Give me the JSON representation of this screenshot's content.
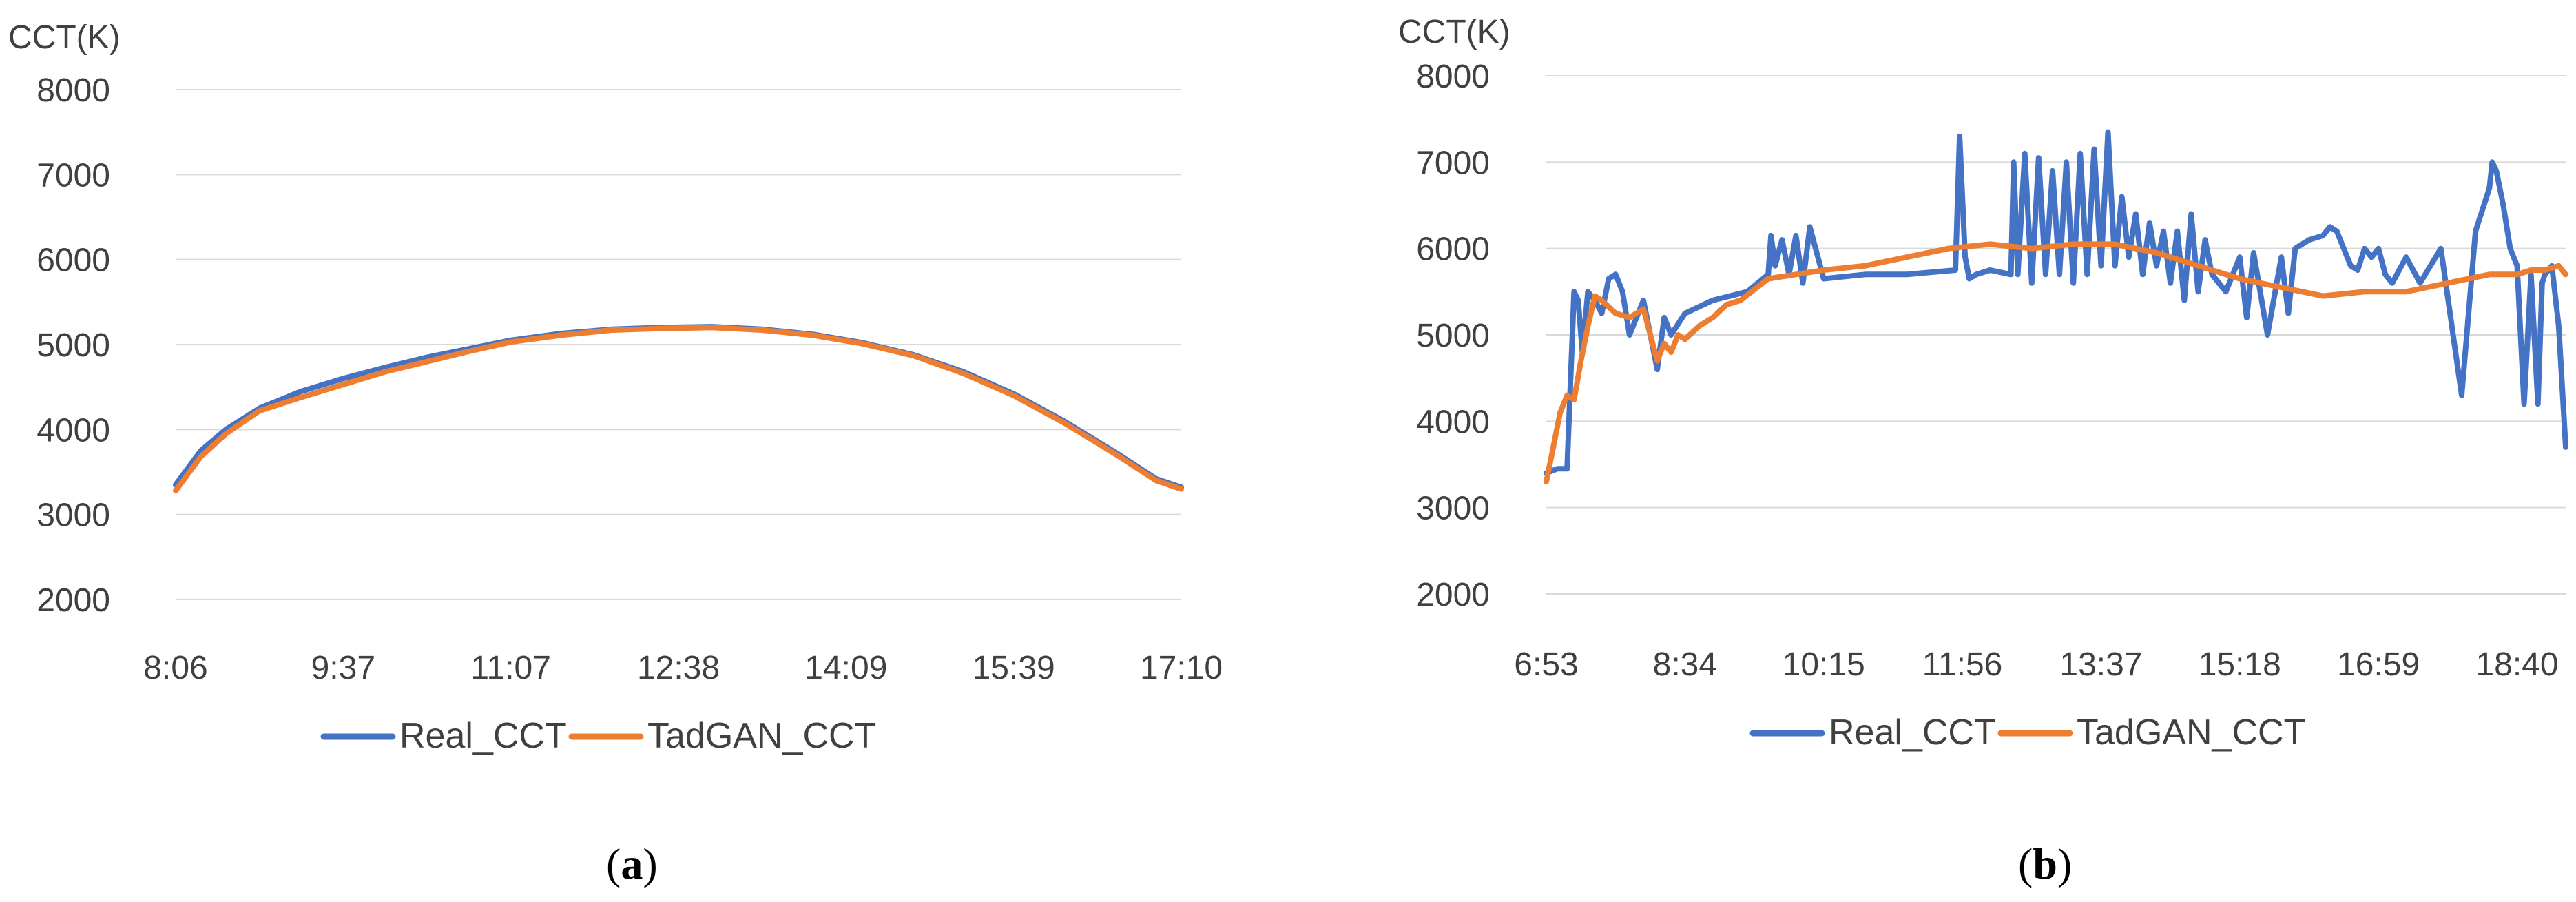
{
  "colors": {
    "real": "#4472C4",
    "tadgan": "#ED7D31",
    "grid": "#D9D9D9",
    "text": "#404040"
  },
  "chart_data": [
    {
      "type": "line",
      "panel_label": "a",
      "ylabel": "CCT(K)",
      "xlabel": "",
      "ylim": [
        2000,
        8000
      ],
      "y_ticks": [
        "2000",
        "3000",
        "4000",
        "5000",
        "6000",
        "7000",
        "8000"
      ],
      "x_tick_labels": [
        "8:06",
        "9:37",
        "11:07",
        "12:38",
        "14:09",
        "15:39",
        "17:10"
      ],
      "x_range": [
        0,
        6
      ],
      "grid": "horizontal",
      "legend_position": "bottom",
      "series": [
        {
          "name": "Real_CCT",
          "color": "#4472C4",
          "x": [
            0,
            0.15,
            0.3,
            0.5,
            0.75,
            1.0,
            1.25,
            1.5,
            1.75,
            2.0,
            2.3,
            2.6,
            2.9,
            3.2,
            3.5,
            3.8,
            4.1,
            4.4,
            4.7,
            5.0,
            5.3,
            5.6,
            5.85,
            6.0
          ],
          "y": [
            3350,
            3750,
            4000,
            4250,
            4450,
            4600,
            4730,
            4850,
            4950,
            5050,
            5130,
            5180,
            5200,
            5210,
            5180,
            5120,
            5020,
            4880,
            4680,
            4420,
            4100,
            3740,
            3420,
            3320
          ]
        },
        {
          "name": "TadGAN_CCT",
          "color": "#ED7D31",
          "x": [
            0,
            0.15,
            0.3,
            0.5,
            0.75,
            1.0,
            1.25,
            1.5,
            1.75,
            2.0,
            2.3,
            2.6,
            2.9,
            3.2,
            3.5,
            3.8,
            4.1,
            4.4,
            4.7,
            5.0,
            5.3,
            5.6,
            5.85,
            6.0
          ],
          "y": [
            3280,
            3680,
            3950,
            4220,
            4380,
            4530,
            4680,
            4800,
            4920,
            5030,
            5110,
            5170,
            5190,
            5200,
            5170,
            5110,
            5010,
            4870,
            4660,
            4400,
            4080,
            3720,
            3400,
            3300
          ]
        }
      ]
    },
    {
      "type": "line",
      "panel_label": "b",
      "ylabel": "CCT(K)",
      "xlabel": "",
      "ylim": [
        2000,
        8000
      ],
      "y_ticks": [
        "2000",
        "3000",
        "4000",
        "5000",
        "6000",
        "7000",
        "8000"
      ],
      "x_tick_labels": [
        "6:53",
        "8:34",
        "10:15",
        "11:56",
        "13:37",
        "15:18",
        "16:59",
        "18:40"
      ],
      "x_range": [
        0,
        7.35
      ],
      "grid": "horizontal",
      "legend_position": "bottom",
      "series": [
        {
          "name": "Real_CCT",
          "color": "#4472C4",
          "x": [
            0,
            0.08,
            0.15,
            0.2,
            0.23,
            0.26,
            0.3,
            0.35,
            0.4,
            0.45,
            0.5,
            0.55,
            0.6,
            0.7,
            0.8,
            0.85,
            0.9,
            1.0,
            1.2,
            1.45,
            1.6,
            1.62,
            1.65,
            1.7,
            1.75,
            1.8,
            1.85,
            1.9,
            2.0,
            2.3,
            2.6,
            2.95,
            2.98,
            3.02,
            3.05,
            3.1,
            3.2,
            3.35,
            3.37,
            3.4,
            3.45,
            3.5,
            3.55,
            3.6,
            3.65,
            3.7,
            3.75,
            3.8,
            3.85,
            3.9,
            3.95,
            4.0,
            4.05,
            4.1,
            4.15,
            4.2,
            4.25,
            4.3,
            4.35,
            4.4,
            4.45,
            4.5,
            4.55,
            4.6,
            4.65,
            4.7,
            4.75,
            4.8,
            4.9,
            5.0,
            5.05,
            5.1,
            5.2,
            5.3,
            5.35,
            5.4,
            5.5,
            5.6,
            5.65,
            5.7,
            5.75,
            5.8,
            5.85,
            5.9,
            5.95,
            6.0,
            6.05,
            6.1,
            6.2,
            6.3,
            6.45,
            6.6,
            6.7,
            6.8,
            6.82,
            6.85,
            6.9,
            6.95,
            7.0,
            7.05,
            7.1,
            7.15,
            7.18,
            7.2,
            7.25,
            7.3,
            7.35
          ],
          "y": [
            3400,
            3450,
            3450,
            5500,
            5400,
            4800,
            5500,
            5400,
            5250,
            5650,
            5700,
            5500,
            5000,
            5400,
            4600,
            5200,
            5000,
            5250,
            5400,
            5500,
            5700,
            6150,
            5800,
            6100,
            5700,
            6150,
            5600,
            6250,
            5650,
            5700,
            5700,
            5750,
            7300,
            5900,
            5650,
            5700,
            5750,
            5700,
            7000,
            5700,
            7100,
            5600,
            7050,
            5700,
            6900,
            5700,
            7000,
            5600,
            7100,
            5700,
            7150,
            5800,
            7350,
            5800,
            6600,
            5900,
            6400,
            5700,
            6300,
            5800,
            6200,
            5600,
            6200,
            5400,
            6400,
            5500,
            6100,
            5700,
            5500,
            5900,
            5200,
            5950,
            5000,
            5900,
            5250,
            6000,
            6100,
            6150,
            6250,
            6200,
            6000,
            5800,
            5750,
            6000,
            5900,
            6000,
            5700,
            5600,
            5900,
            5600,
            6000,
            4300,
            6200,
            6700,
            7000,
            6900,
            6500,
            6000,
            5800,
            4200,
            5700,
            4200,
            5600,
            5700,
            5800,
            5100,
            3700
          ]
        },
        {
          "name": "TadGAN_CCT",
          "color": "#ED7D31",
          "x": [
            0,
            0.05,
            0.1,
            0.15,
            0.2,
            0.25,
            0.3,
            0.35,
            0.4,
            0.5,
            0.6,
            0.7,
            0.8,
            0.85,
            0.9,
            0.95,
            1.0,
            1.1,
            1.2,
            1.3,
            1.4,
            1.6,
            1.8,
            2.0,
            2.3,
            2.6,
            2.9,
            3.2,
            3.5,
            3.8,
            4.1,
            4.4,
            4.7,
            5.0,
            5.3,
            5.6,
            5.9,
            6.2,
            6.5,
            6.8,
            7.0,
            7.1,
            7.2,
            7.3,
            7.35
          ],
          "y": [
            3300,
            3700,
            4100,
            4300,
            4250,
            4700,
            5100,
            5450,
            5400,
            5250,
            5200,
            5300,
            4700,
            4900,
            4800,
            5000,
            4950,
            5100,
            5200,
            5350,
            5400,
            5650,
            5700,
            5750,
            5800,
            5900,
            6000,
            6050,
            6000,
            6050,
            6050,
            5950,
            5800,
            5650,
            5550,
            5450,
            5500,
            5500,
            5600,
            5700,
            5700,
            5750,
            5750,
            5800,
            5700
          ]
        }
      ]
    }
  ]
}
